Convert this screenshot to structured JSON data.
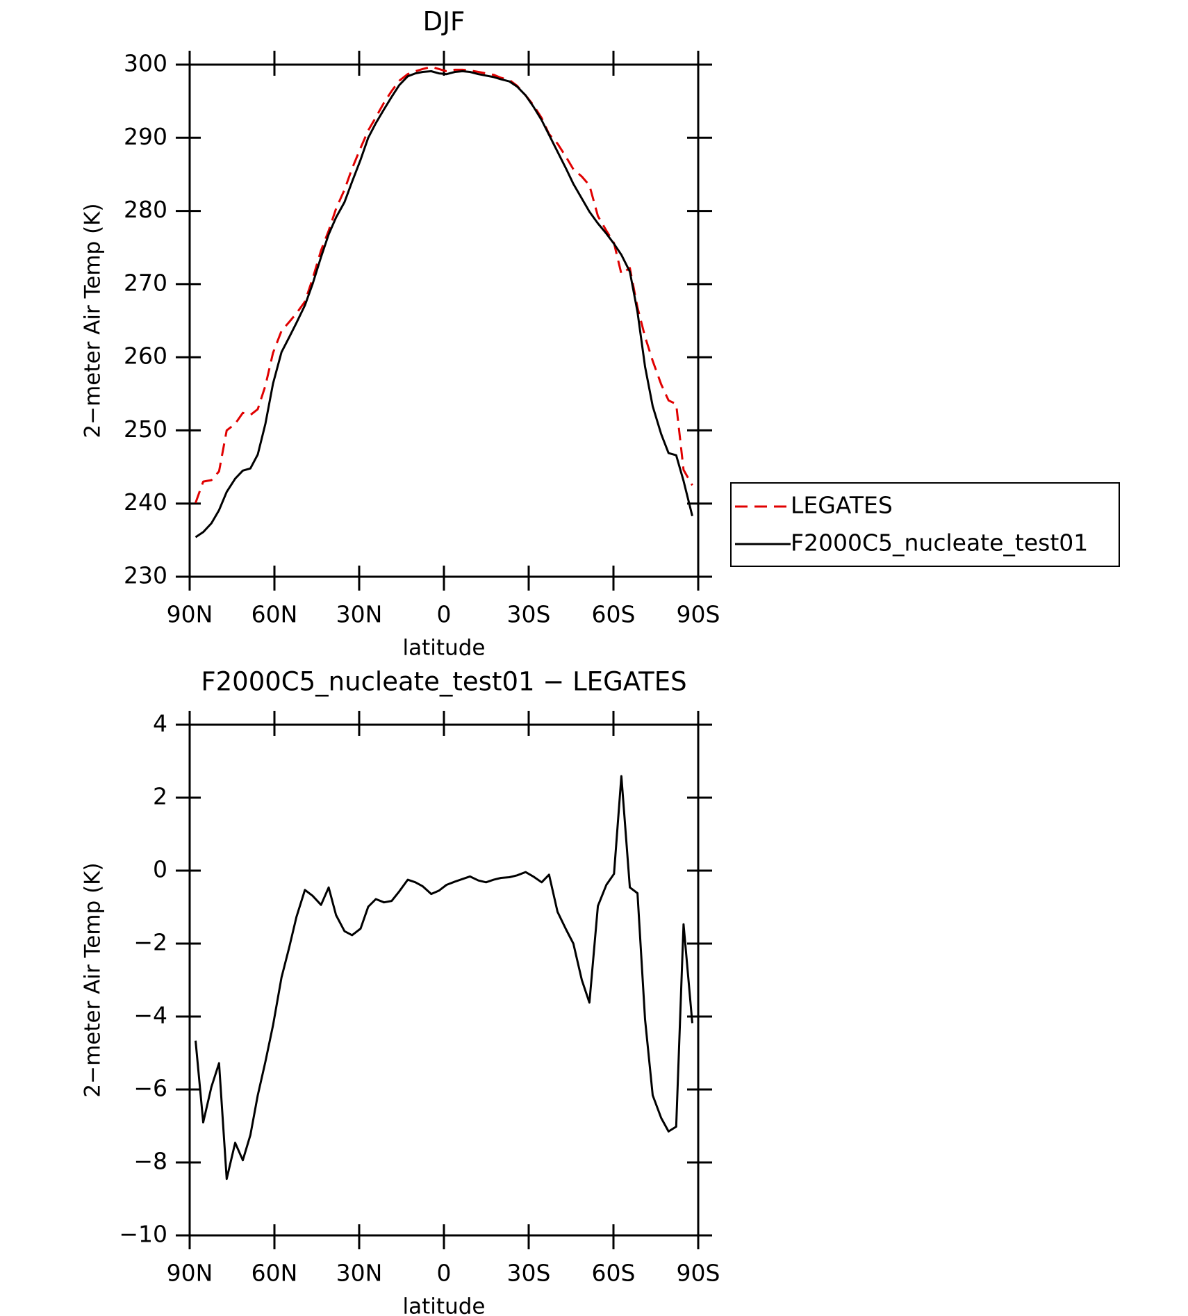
{
  "chart_data": [
    {
      "type": "line",
      "title": "DJF",
      "y_label": "2−meter Air Temp (K)",
      "x_label": "latitude",
      "x": [
        87.9,
        85.2,
        82.3,
        79.6,
        76.9,
        73.9,
        71.2,
        68.5,
        65.9,
        63.2,
        60.5,
        57.5,
        54.8,
        52.2,
        49.2,
        46.5,
        43.5,
        40.8,
        38.2,
        35.2,
        32.5,
        29.5,
        26.8,
        24.1,
        21.2,
        18.5,
        15.8,
        12.8,
        10.1,
        7.5,
        4.5,
        1.8,
        -0.9,
        -3.9,
        -6.6,
        -9.2,
        -12.2,
        -14.9,
        -17.6,
        -20.2,
        -23.2,
        -25.9,
        -28.9,
        -31.6,
        -34.6,
        -37.2,
        -40.2,
        -43.2,
        -45.8,
        -48.8,
        -51.5,
        -54.5,
        -57.5,
        -60.2,
        -62.8,
        -65.8,
        -68.5,
        -71.2,
        -73.9,
        -76.9,
        -79.5,
        -82.2,
        -84.8,
        -87.9
      ],
      "series": [
        {
          "name": "LEGATES",
          "color": "#e00000",
          "dashed": true,
          "values": [
            240.1,
            243.0,
            243.2,
            244.4,
            250.0,
            250.9,
            252.4,
            252.1,
            252.9,
            256.1,
            260.6,
            263.6,
            264.8,
            266.0,
            267.6,
            270.7,
            274.6,
            277.3,
            280.3,
            282.9,
            285.8,
            288.6,
            291.0,
            292.8,
            294.8,
            296.4,
            297.8,
            298.7,
            299.1,
            299.4,
            299.7,
            299.4,
            299.1,
            299.3,
            299.3,
            299.2,
            299.0,
            298.8,
            298.6,
            298.2,
            297.9,
            297.1,
            295.8,
            294.5,
            292.7,
            290.5,
            289.2,
            287.4,
            285.7,
            284.7,
            283.5,
            279.3,
            277.3,
            275.6,
            271.4,
            272.2,
            266.8,
            262.8,
            259.5,
            256.3,
            254.1,
            253.6,
            244.6,
            242.5
          ]
        },
        {
          "name": "F2000C5_nucleate_test01",
          "color": "#000000",
          "dashed": false,
          "values": [
            235.4,
            236.1,
            237.3,
            239.1,
            241.6,
            243.4,
            244.5,
            244.8,
            246.7,
            250.9,
            256.4,
            260.7,
            262.7,
            264.7,
            267.1,
            270.0,
            273.7,
            276.8,
            279.1,
            281.2,
            284.0,
            287.0,
            290.0,
            292.0,
            293.9,
            295.6,
            297.2,
            298.4,
            298.8,
            299.0,
            299.1,
            298.8,
            298.7,
            299.0,
            299.1,
            299.0,
            298.7,
            298.5,
            298.3,
            298.0,
            297.7,
            297.0,
            295.8,
            294.3,
            292.4,
            290.4,
            288.1,
            285.8,
            283.7,
            281.7,
            279.9,
            278.3,
            276.9,
            275.5,
            274.0,
            271.7,
            266.2,
            258.7,
            253.3,
            249.5,
            246.9,
            246.6,
            243.1,
            238.3
          ]
        }
      ],
      "xlim": [
        90,
        -90
      ],
      "xticks": [
        {
          "value": 90,
          "label": "90N"
        },
        {
          "value": 60,
          "label": "60N"
        },
        {
          "value": 30,
          "label": "30N"
        },
        0,
        {
          "value": -30,
          "label": "30S"
        },
        {
          "value": -60,
          "label": "60S"
        },
        {
          "value": -90,
          "label": "90S"
        }
      ],
      "ylim": [
        230,
        300
      ],
      "yticks": [
        230,
        240,
        250,
        260,
        270,
        280,
        290,
        300
      ],
      "legend": "right"
    },
    {
      "type": "line",
      "title": "F2000C5_nucleate_test01 − LEGATES",
      "y_label": "2−meter Air Temp (K)",
      "x_label": "latitude",
      "x": [
        87.9,
        85.2,
        82.3,
        79.6,
        76.9,
        73.9,
        71.2,
        68.5,
        65.9,
        63.2,
        60.5,
        57.5,
        54.8,
        52.2,
        49.2,
        46.5,
        43.5,
        40.8,
        38.2,
        35.2,
        32.5,
        29.5,
        26.8,
        24.1,
        21.2,
        18.5,
        15.8,
        12.8,
        10.1,
        7.5,
        4.5,
        1.8,
        -0.9,
        -3.9,
        -6.6,
        -9.2,
        -12.2,
        -14.9,
        -17.6,
        -20.2,
        -23.2,
        -25.9,
        -28.9,
        -31.6,
        -34.6,
        -37.2,
        -40.2,
        -43.2,
        -45.8,
        -48.8,
        -51.5,
        -54.5,
        -57.5,
        -60.2,
        -62.8,
        -65.8,
        -68.5,
        -71.2,
        -73.9,
        -76.9,
        -79.5,
        -82.2,
        -84.8,
        -87.9
      ],
      "values": [
        -4.66,
        -6.9,
        -5.93,
        -5.28,
        -8.45,
        -7.46,
        -7.94,
        -7.25,
        -6.16,
        -5.24,
        -4.24,
        -2.93,
        -2.12,
        -1.27,
        -0.53,
        -0.69,
        -0.94,
        -0.46,
        -1.22,
        -1.66,
        -1.77,
        -1.59,
        -0.99,
        -0.78,
        -0.87,
        -0.83,
        -0.57,
        -0.25,
        -0.32,
        -0.43,
        -0.64,
        -0.55,
        -0.39,
        -0.3,
        -0.23,
        -0.16,
        -0.27,
        -0.32,
        -0.25,
        -0.2,
        -0.18,
        -0.13,
        -0.04,
        -0.16,
        -0.32,
        -0.11,
        -1.13,
        -1.61,
        -2.0,
        -3.0,
        -3.62,
        -0.97,
        -0.39,
        -0.09,
        2.59,
        -0.46,
        -0.62,
        -4.08,
        -6.16,
        -6.78,
        -7.15,
        -7.02,
        -1.47,
        -4.18
      ],
      "color": "#000000",
      "xlim": [
        90,
        -90
      ],
      "xticks": [
        {
          "value": 90,
          "label": "90N"
        },
        {
          "value": 60,
          "label": "60N"
        },
        {
          "value": 30,
          "label": "30N"
        },
        0,
        {
          "value": -30,
          "label": "30S"
        },
        {
          "value": -60,
          "label": "60S"
        },
        {
          "value": -90,
          "label": "90S"
        }
      ],
      "ylim": [
        -10,
        4
      ],
      "yticks": [
        {
          "value": -10,
          "label": "−10"
        },
        {
          "value": -8,
          "label": "−8"
        },
        {
          "value": -6,
          "label": "−6"
        },
        {
          "value": -4,
          "label": "−4"
        },
        {
          "value": -2,
          "label": "−2"
        },
        0,
        2,
        4
      ]
    }
  ]
}
